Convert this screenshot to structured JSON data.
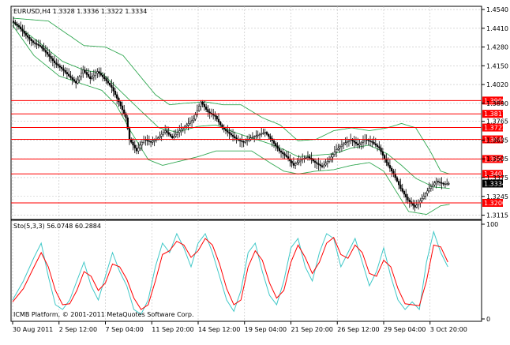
{
  "main_header": "EURUSD,H4  1.3328 1.3336 1.3322 1.3334",
  "osc_header": "Sto(5,3,3) 56.0748 60.2884",
  "footer": "ICMB Platform, © 2001-2011 MetaQuotes Software Corp.",
  "colors": {
    "background": "#ffffff",
    "grid": "#c0c0c0",
    "candle": "#000000",
    "bollinger": "#32a852",
    "level_line": "#ff0000",
    "level_label_bg": "#ff0000",
    "current_label_bg": "#000000",
    "stoch_main": "#40c8c8",
    "stoch_signal": "#ff0000"
  },
  "chart_data": [
    {
      "type": "candlestick",
      "symbol": "EURUSD",
      "timeframe": "H4",
      "last_bar": {
        "open": 1.3328,
        "high": 1.3336,
        "low": 1.3322,
        "close": 1.3334
      },
      "current_price": "1.3334",
      "y_ticks": [
        "1.4540",
        "1.4410",
        "1.4280",
        "1.4150",
        "1.4020",
        "1.3890",
        "1.3765",
        "1.3635",
        "1.3505",
        "1.3375",
        "1.3245",
        "1.3115"
      ],
      "ylim": [
        1.3085,
        1.4562
      ],
      "x_ticks": [
        "30 Aug 2011",
        "2 Sep 12:00",
        "7 Sep 04:00",
        "11 Sep 20:00",
        "14 Sep 12:00",
        "19 Sep 04:00",
        "21 Sep 20:00",
        "26 Sep 12:00",
        "29 Sep 04:00",
        "3 Oct 20:00"
      ],
      "levels": [
        "1.3909",
        "1.3817",
        "1.3722",
        "1.3640",
        "1.3504",
        "1.3401",
        "1.3200"
      ],
      "indicator": "Bollinger Bands",
      "grid": true,
      "price_path": [
        [
          0,
          1.446
        ],
        [
          4,
          1.442
        ],
        [
          8,
          1.436
        ],
        [
          12,
          1.431
        ],
        [
          16,
          1.4285
        ],
        [
          20,
          1.423
        ],
        [
          24,
          1.417
        ],
        [
          28,
          1.413
        ],
        [
          32,
          1.408
        ],
        [
          36,
          1.403
        ],
        [
          40,
          1.412
        ],
        [
          44,
          1.406
        ],
        [
          48,
          1.411
        ],
        [
          52,
          1.406
        ],
        [
          56,
          1.4
        ],
        [
          60,
          1.39
        ],
        [
          64,
          1.379
        ],
        [
          66,
          1.364
        ],
        [
          70,
          1.356
        ],
        [
          74,
          1.364
        ],
        [
          78,
          1.362
        ],
        [
          82,
          1.365
        ],
        [
          86,
          1.37
        ],
        [
          90,
          1.365
        ],
        [
          94,
          1.37
        ],
        [
          98,
          1.374
        ],
        [
          102,
          1.378
        ],
        [
          106,
          1.39
        ],
        [
          110,
          1.383
        ],
        [
          114,
          1.38
        ],
        [
          118,
          1.372
        ],
        [
          122,
          1.368
        ],
        [
          126,
          1.364
        ],
        [
          130,
          1.362
        ],
        [
          134,
          1.365
        ],
        [
          138,
          1.367
        ],
        [
          142,
          1.369
        ],
        [
          146,
          1.363
        ],
        [
          150,
          1.356
        ],
        [
          154,
          1.352
        ],
        [
          158,
          1.346
        ],
        [
          162,
          1.35
        ],
        [
          166,
          1.352
        ],
        [
          170,
          1.348
        ],
        [
          174,
          1.345
        ],
        [
          178,
          1.35
        ],
        [
          182,
          1.357
        ],
        [
          186,
          1.361
        ],
        [
          190,
          1.364
        ],
        [
          194,
          1.36
        ],
        [
          198,
          1.364
        ],
        [
          202,
          1.362
        ],
        [
          206,
          1.358
        ],
        [
          210,
          1.348
        ],
        [
          214,
          1.34
        ],
        [
          218,
          1.33
        ],
        [
          222,
          1.322
        ],
        [
          226,
          1.317
        ],
        [
          230,
          1.323
        ],
        [
          234,
          1.33
        ],
        [
          238,
          1.335
        ],
        [
          242,
          1.333
        ],
        [
          245,
          1.3334
        ]
      ],
      "bollinger": {
        "upper": [
          [
            0,
            1.448
          ],
          [
            20,
            1.446
          ],
          [
            40,
            1.429
          ],
          [
            52,
            1.428
          ],
          [
            62,
            1.422
          ],
          [
            72,
            1.407
          ],
          [
            80,
            1.395
          ],
          [
            88,
            1.388
          ],
          [
            96,
            1.389
          ],
          [
            108,
            1.39
          ],
          [
            118,
            1.388
          ],
          [
            128,
            1.388
          ],
          [
            140,
            1.379
          ],
          [
            150,
            1.374
          ],
          [
            160,
            1.363
          ],
          [
            170,
            1.364
          ],
          [
            180,
            1.37
          ],
          [
            190,
            1.372
          ],
          [
            200,
            1.37
          ],
          [
            210,
            1.372
          ],
          [
            218,
            1.375
          ],
          [
            226,
            1.372
          ],
          [
            234,
            1.356
          ],
          [
            240,
            1.342
          ],
          [
            245,
            1.34
          ]
        ],
        "middle": [
          [
            0,
            1.445
          ],
          [
            14,
            1.432
          ],
          [
            28,
            1.418
          ],
          [
            40,
            1.412
          ],
          [
            50,
            1.41
          ],
          [
            60,
            1.398
          ],
          [
            70,
            1.386
          ],
          [
            82,
            1.372
          ],
          [
            92,
            1.369
          ],
          [
            104,
            1.373
          ],
          [
            114,
            1.374
          ],
          [
            124,
            1.369
          ],
          [
            134,
            1.365
          ],
          [
            144,
            1.361
          ],
          [
            152,
            1.357
          ],
          [
            160,
            1.352
          ],
          [
            170,
            1.353
          ],
          [
            180,
            1.354
          ],
          [
            190,
            1.358
          ],
          [
            200,
            1.36
          ],
          [
            210,
            1.354
          ],
          [
            218,
            1.346
          ],
          [
            226,
            1.337
          ],
          [
            236,
            1.331
          ],
          [
            245,
            1.33
          ]
        ],
        "lower": [
          [
            0,
            1.443
          ],
          [
            12,
            1.422
          ],
          [
            26,
            1.408
          ],
          [
            40,
            1.402
          ],
          [
            50,
            1.398
          ],
          [
            58,
            1.388
          ],
          [
            66,
            1.37
          ],
          [
            76,
            1.35
          ],
          [
            84,
            1.346
          ],
          [
            94,
            1.349
          ],
          [
            104,
            1.352
          ],
          [
            114,
            1.356
          ],
          [
            124,
            1.356
          ],
          [
            134,
            1.356
          ],
          [
            144,
            1.348
          ],
          [
            152,
            1.342
          ],
          [
            160,
            1.34
          ],
          [
            170,
            1.342
          ],
          [
            180,
            1.343
          ],
          [
            190,
            1.346
          ],
          [
            200,
            1.348
          ],
          [
            208,
            1.342
          ],
          [
            216,
            1.326
          ],
          [
            222,
            1.314
          ],
          [
            232,
            1.312
          ],
          [
            240,
            1.318
          ],
          [
            245,
            1.319
          ]
        ]
      }
    },
    {
      "type": "line",
      "indicator": "Stochastic Oscillator",
      "params": "5,3,3",
      "main_value": 56.0748,
      "signal_value": 60.2884,
      "y_ticks": [
        "100",
        "0"
      ],
      "ylim": [
        0,
        100
      ],
      "series": [
        {
          "name": "main",
          "points": [
            [
              0,
              20
            ],
            [
              6,
              40
            ],
            [
              12,
              65
            ],
            [
              16,
              80
            ],
            [
              20,
              45
            ],
            [
              24,
              15
            ],
            [
              28,
              10
            ],
            [
              32,
              20
            ],
            [
              36,
              40
            ],
            [
              40,
              60
            ],
            [
              44,
              35
            ],
            [
              48,
              20
            ],
            [
              52,
              45
            ],
            [
              56,
              70
            ],
            [
              60,
              50
            ],
            [
              64,
              35
            ],
            [
              68,
              10
            ],
            [
              72,
              5
            ],
            [
              76,
              20
            ],
            [
              80,
              55
            ],
            [
              84,
              80
            ],
            [
              88,
              70
            ],
            [
              92,
              90
            ],
            [
              96,
              75
            ],
            [
              100,
              55
            ],
            [
              104,
              80
            ],
            [
              108,
              90
            ],
            [
              112,
              70
            ],
            [
              116,
              45
            ],
            [
              120,
              20
            ],
            [
              124,
              8
            ],
            [
              128,
              30
            ],
            [
              132,
              70
            ],
            [
              136,
              80
            ],
            [
              140,
              50
            ],
            [
              144,
              25
            ],
            [
              148,
              15
            ],
            [
              152,
              40
            ],
            [
              156,
              75
            ],
            [
              160,
              85
            ],
            [
              164,
              55
            ],
            [
              168,
              40
            ],
            [
              172,
              70
            ],
            [
              176,
              90
            ],
            [
              180,
              85
            ],
            [
              184,
              55
            ],
            [
              188,
              70
            ],
            [
              192,
              85
            ],
            [
              196,
              60
            ],
            [
              200,
              35
            ],
            [
              204,
              50
            ],
            [
              208,
              75
            ],
            [
              212,
              45
            ],
            [
              216,
              20
            ],
            [
              220,
              10
            ],
            [
              224,
              18
            ],
            [
              228,
              10
            ],
            [
              232,
              60
            ],
            [
              236,
              92
            ],
            [
              240,
              70
            ],
            [
              244,
              55
            ]
          ]
        },
        {
          "name": "signal",
          "points": [
            [
              0,
              18
            ],
            [
              6,
              32
            ],
            [
              12,
              55
            ],
            [
              16,
              70
            ],
            [
              20,
              55
            ],
            [
              24,
              30
            ],
            [
              28,
              15
            ],
            [
              32,
              16
            ],
            [
              36,
              30
            ],
            [
              40,
              50
            ],
            [
              44,
              45
            ],
            [
              48,
              30
            ],
            [
              52,
              38
            ],
            [
              56,
              58
            ],
            [
              60,
              55
            ],
            [
              64,
              42
            ],
            [
              68,
              22
            ],
            [
              72,
              10
            ],
            [
              76,
              15
            ],
            [
              80,
              40
            ],
            [
              84,
              68
            ],
            [
              88,
              72
            ],
            [
              92,
              82
            ],
            [
              96,
              78
            ],
            [
              100,
              65
            ],
            [
              104,
              72
            ],
            [
              108,
              85
            ],
            [
              112,
              78
            ],
            [
              116,
              58
            ],
            [
              120,
              32
            ],
            [
              124,
              15
            ],
            [
              128,
              20
            ],
            [
              132,
              55
            ],
            [
              136,
              72
            ],
            [
              140,
              62
            ],
            [
              144,
              38
            ],
            [
              148,
              22
            ],
            [
              152,
              30
            ],
            [
              156,
              60
            ],
            [
              160,
              78
            ],
            [
              164,
              65
            ],
            [
              168,
              48
            ],
            [
              172,
              60
            ],
            [
              176,
              80
            ],
            [
              180,
              86
            ],
            [
              184,
              68
            ],
            [
              188,
              64
            ],
            [
              192,
              78
            ],
            [
              196,
              70
            ],
            [
              200,
              48
            ],
            [
              204,
              45
            ],
            [
              208,
              62
            ],
            [
              212,
              55
            ],
            [
              216,
              32
            ],
            [
              220,
              16
            ],
            [
              224,
              15
            ],
            [
              228,
              14
            ],
            [
              232,
              40
            ],
            [
              236,
              78
            ],
            [
              240,
              76
            ],
            [
              244,
              60
            ]
          ]
        }
      ]
    }
  ]
}
